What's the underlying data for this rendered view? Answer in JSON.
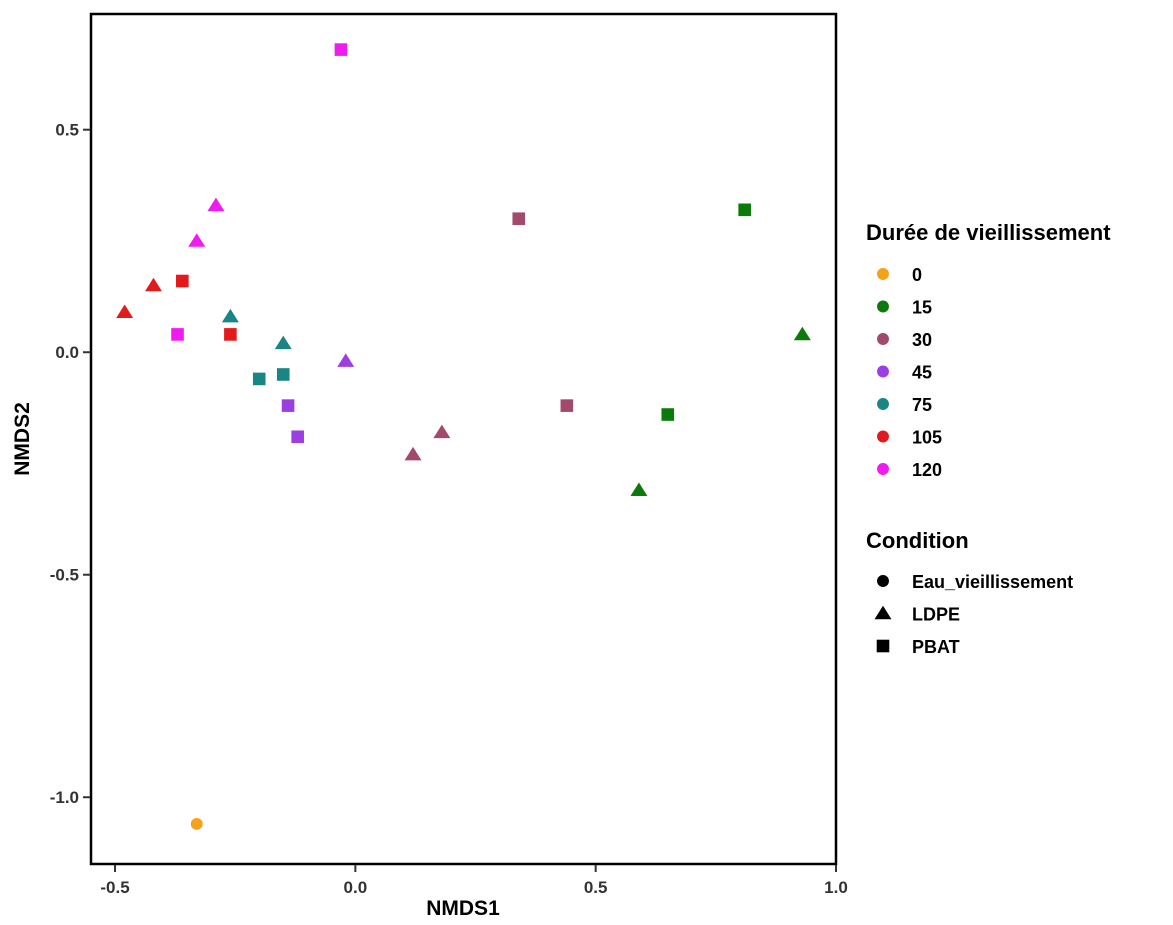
{
  "chart_data": {
    "type": "scatter",
    "xlabel": "NMDS1",
    "ylabel": "NMDS2",
    "xlim": [
      -0.55,
      1.0
    ],
    "ylim": [
      -1.15,
      0.76
    ],
    "x_ticks": [
      -0.5,
      0.0,
      0.5,
      1.0
    ],
    "x_tick_labels": [
      "-0.5",
      "0.0",
      "0.5",
      "1.0"
    ],
    "y_ticks": [
      -1.0,
      -0.5,
      0.0,
      0.5
    ],
    "y_tick_labels": [
      "-1.0",
      "-0.5",
      "0.0",
      "0.5"
    ],
    "grid": false,
    "legend_placement": "right",
    "color_legend": {
      "title": "Durée de vieillissement",
      "items": [
        {
          "label": "0",
          "color": "#F5A21B"
        },
        {
          "label": "15",
          "color": "#0B7A0B"
        },
        {
          "label": "30",
          "color": "#A2496E"
        },
        {
          "label": "45",
          "color": "#9B3FE0"
        },
        {
          "label": "75",
          "color": "#1A8585"
        },
        {
          "label": "105",
          "color": "#E31A1C"
        },
        {
          "label": "120",
          "color": "#F01BF0"
        }
      ]
    },
    "shape_legend": {
      "title": "Condition",
      "items": [
        {
          "label": "Eau_vieillissement",
          "shape": "circle"
        },
        {
          "label": "LDPE",
          "shape": "triangle"
        },
        {
          "label": "PBAT",
          "shape": "square"
        }
      ]
    },
    "points": [
      {
        "x": -0.33,
        "y": -1.06,
        "duration": "0",
        "condition": "Eau_vieillissement"
      },
      {
        "x": 0.81,
        "y": 0.32,
        "duration": "15",
        "condition": "PBAT"
      },
      {
        "x": 0.65,
        "y": -0.14,
        "duration": "15",
        "condition": "PBAT"
      },
      {
        "x": 0.93,
        "y": 0.04,
        "duration": "15",
        "condition": "LDPE"
      },
      {
        "x": 0.59,
        "y": -0.31,
        "duration": "15",
        "condition": "LDPE"
      },
      {
        "x": 0.34,
        "y": 0.3,
        "duration": "30",
        "condition": "PBAT"
      },
      {
        "x": 0.44,
        "y": -0.12,
        "duration": "30",
        "condition": "PBAT"
      },
      {
        "x": 0.12,
        "y": -0.23,
        "duration": "30",
        "condition": "LDPE"
      },
      {
        "x": 0.18,
        "y": -0.18,
        "duration": "30",
        "condition": "LDPE"
      },
      {
        "x": -0.02,
        "y": -0.02,
        "duration": "45",
        "condition": "LDPE"
      },
      {
        "x": -0.14,
        "y": -0.12,
        "duration": "45",
        "condition": "PBAT"
      },
      {
        "x": -0.12,
        "y": -0.19,
        "duration": "45",
        "condition": "PBAT"
      },
      {
        "x": -0.26,
        "y": 0.08,
        "duration": "75",
        "condition": "LDPE"
      },
      {
        "x": -0.15,
        "y": 0.02,
        "duration": "75",
        "condition": "LDPE"
      },
      {
        "x": -0.2,
        "y": -0.06,
        "duration": "75",
        "condition": "PBAT"
      },
      {
        "x": -0.15,
        "y": -0.05,
        "duration": "75",
        "condition": "PBAT"
      },
      {
        "x": -0.48,
        "y": 0.09,
        "duration": "105",
        "condition": "LDPE"
      },
      {
        "x": -0.42,
        "y": 0.15,
        "duration": "105",
        "condition": "LDPE"
      },
      {
        "x": -0.36,
        "y": 0.16,
        "duration": "105",
        "condition": "PBAT"
      },
      {
        "x": -0.26,
        "y": 0.04,
        "duration": "105",
        "condition": "PBAT"
      },
      {
        "x": -0.29,
        "y": 0.33,
        "duration": "120",
        "condition": "LDPE"
      },
      {
        "x": -0.33,
        "y": 0.25,
        "duration": "120",
        "condition": "LDPE"
      },
      {
        "x": -0.37,
        "y": 0.04,
        "duration": "120",
        "condition": "PBAT"
      },
      {
        "x": -0.03,
        "y": 0.68,
        "duration": "120",
        "condition": "PBAT"
      }
    ]
  }
}
